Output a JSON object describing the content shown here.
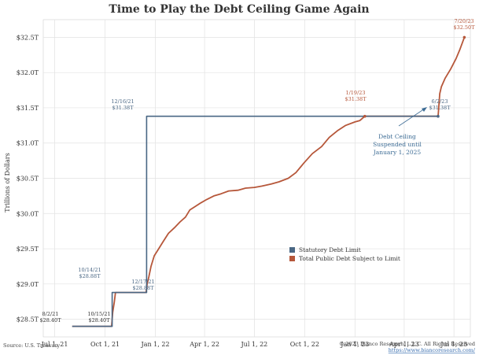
{
  "colors": {
    "statutory": "#4a6784",
    "total": "#b6573a",
    "ceiling_note": "#3d6c95",
    "grid": "#e2e2e2"
  },
  "chart_data": {
    "type": "line",
    "title": "Time to Play the Debt Ceiling Game Again",
    "ylabel": "Trillions of Dollars",
    "xlabel": "",
    "ylim": [
      28.25,
      32.75
    ],
    "xlim": [
      "2021-06-10",
      "2023-07-31"
    ],
    "x_ticks": [
      {
        "date": "2021-07-01",
        "label": "Jul 1, 21"
      },
      {
        "date": "2021-10-01",
        "label": "Oct 1, 21"
      },
      {
        "date": "2022-01-01",
        "label": "Jan 1, 22"
      },
      {
        "date": "2022-04-01",
        "label": "Apr 1, 22"
      },
      {
        "date": "2022-07-01",
        "label": "Jul 1, 22"
      },
      {
        "date": "2022-10-01",
        "label": "Oct 1, 22"
      },
      {
        "date": "2023-01-01",
        "label": "Jan 1, 23"
      },
      {
        "date": "2023-04-01",
        "label": "Apr 1, 23"
      },
      {
        "date": "2023-07-01",
        "label": "Jul 1, 23"
      }
    ],
    "y_ticks": [
      {
        "value": 28.5,
        "label": "$28.5T"
      },
      {
        "value": 29.0,
        "label": "$29.0T"
      },
      {
        "value": 29.5,
        "label": "$29.5T"
      },
      {
        "value": 30.0,
        "label": "$30.0T"
      },
      {
        "value": 30.5,
        "label": "$30.5T"
      },
      {
        "value": 31.0,
        "label": "$31.0T"
      },
      {
        "value": 31.5,
        "label": "$31.5T"
      },
      {
        "value": 32.0,
        "label": "$32.0T"
      },
      {
        "value": 32.5,
        "label": "$32.5T"
      }
    ],
    "legend_position": "center-right",
    "series": [
      {
        "name": "Statutory Debt Limit",
        "color": "#4a6784",
        "points": [
          [
            "2021-08-02",
            28.4
          ],
          [
            "2021-10-14",
            28.4
          ],
          [
            "2021-10-14",
            28.88
          ],
          [
            "2021-12-16",
            28.88
          ],
          [
            "2021-12-16",
            31.38
          ],
          [
            "2023-06-02",
            31.38
          ]
        ]
      },
      {
        "name": "Total Public Debt Subject to Limit",
        "color": "#b6573a",
        "points": [
          [
            "2021-08-02",
            28.4
          ],
          [
            "2021-10-13",
            28.4
          ],
          [
            "2021-10-15",
            28.6
          ],
          [
            "2021-10-18",
            28.75
          ],
          [
            "2021-10-20",
            28.88
          ],
          [
            "2021-12-15",
            28.88
          ],
          [
            "2021-12-17",
            29.0
          ],
          [
            "2021-12-20",
            29.1
          ],
          [
            "2021-12-24",
            29.25
          ],
          [
            "2021-12-30",
            29.4
          ],
          [
            "2022-01-07",
            29.5
          ],
          [
            "2022-01-15",
            29.6
          ],
          [
            "2022-01-25",
            29.72
          ],
          [
            "2022-02-05",
            29.8
          ],
          [
            "2022-02-15",
            29.88
          ],
          [
            "2022-02-25",
            29.95
          ],
          [
            "2022-03-05",
            30.05
          ],
          [
            "2022-03-15",
            30.1
          ],
          [
            "2022-03-25",
            30.15
          ],
          [
            "2022-04-05",
            30.2
          ],
          [
            "2022-04-18",
            30.25
          ],
          [
            "2022-05-01",
            30.28
          ],
          [
            "2022-05-15",
            30.32
          ],
          [
            "2022-06-01",
            30.33
          ],
          [
            "2022-06-15",
            30.36
          ],
          [
            "2022-07-01",
            30.37
          ],
          [
            "2022-07-15",
            30.39
          ],
          [
            "2022-08-01",
            30.42
          ],
          [
            "2022-08-15",
            30.45
          ],
          [
            "2022-09-01",
            30.5
          ],
          [
            "2022-09-15",
            30.58
          ],
          [
            "2022-09-30",
            30.72
          ],
          [
            "2022-10-15",
            30.85
          ],
          [
            "2022-11-01",
            30.95
          ],
          [
            "2022-11-15",
            31.08
          ],
          [
            "2022-12-01",
            31.18
          ],
          [
            "2022-12-15",
            31.25
          ],
          [
            "2023-01-01",
            31.3
          ],
          [
            "2023-01-10",
            31.32
          ],
          [
            "2023-01-19",
            31.38
          ],
          [
            "2023-06-02",
            31.38
          ],
          [
            "2023-06-05",
            31.7
          ],
          [
            "2023-06-08",
            31.8
          ],
          [
            "2023-06-15",
            31.92
          ],
          [
            "2023-06-25",
            32.05
          ],
          [
            "2023-07-05",
            32.2
          ],
          [
            "2023-07-12",
            32.33
          ],
          [
            "2023-07-20",
            32.5
          ]
        ]
      }
    ],
    "annotations": [
      {
        "id": "ann-aug21",
        "date_text": "8/2/21",
        "value_text": "$28.40T",
        "color": "#333333"
      },
      {
        "id": "ann-oct14",
        "date_text": "10/14/21",
        "value_text": "$28.88T",
        "color": "#4a6784"
      },
      {
        "id": "ann-oct15",
        "date_text": "10/15/21",
        "value_text": "$28.40T",
        "color": "#333333"
      },
      {
        "id": "ann-dec16",
        "date_text": "12/16/21",
        "value_text": "$31.38T",
        "color": "#4a6784"
      },
      {
        "id": "ann-dec17",
        "date_text": "12/17/21",
        "value_text": "$28.88T",
        "color": "#4a6784"
      },
      {
        "id": "ann-jan19",
        "date_text": "1/19/23",
        "value_text": "$31.38T",
        "color": "#b6573a"
      },
      {
        "id": "ann-jun2",
        "date_text": "6/2/23",
        "value_text": "$31.38T",
        "color": "#4a6784"
      },
      {
        "id": "ann-jul20",
        "date_text": "7/20/23",
        "value_text": "$32.50T",
        "color": "#b6573a"
      }
    ],
    "ceiling_note": [
      "Debt Ceiling",
      "Suspended until",
      "January 1, 2025"
    ]
  },
  "footer": {
    "source": "Source: U.S. Treasury",
    "copyright": "© 2023 Bianco Research, L.L.C. All Rights Reserved",
    "url": "https://www.biancoresearch.com/"
  }
}
